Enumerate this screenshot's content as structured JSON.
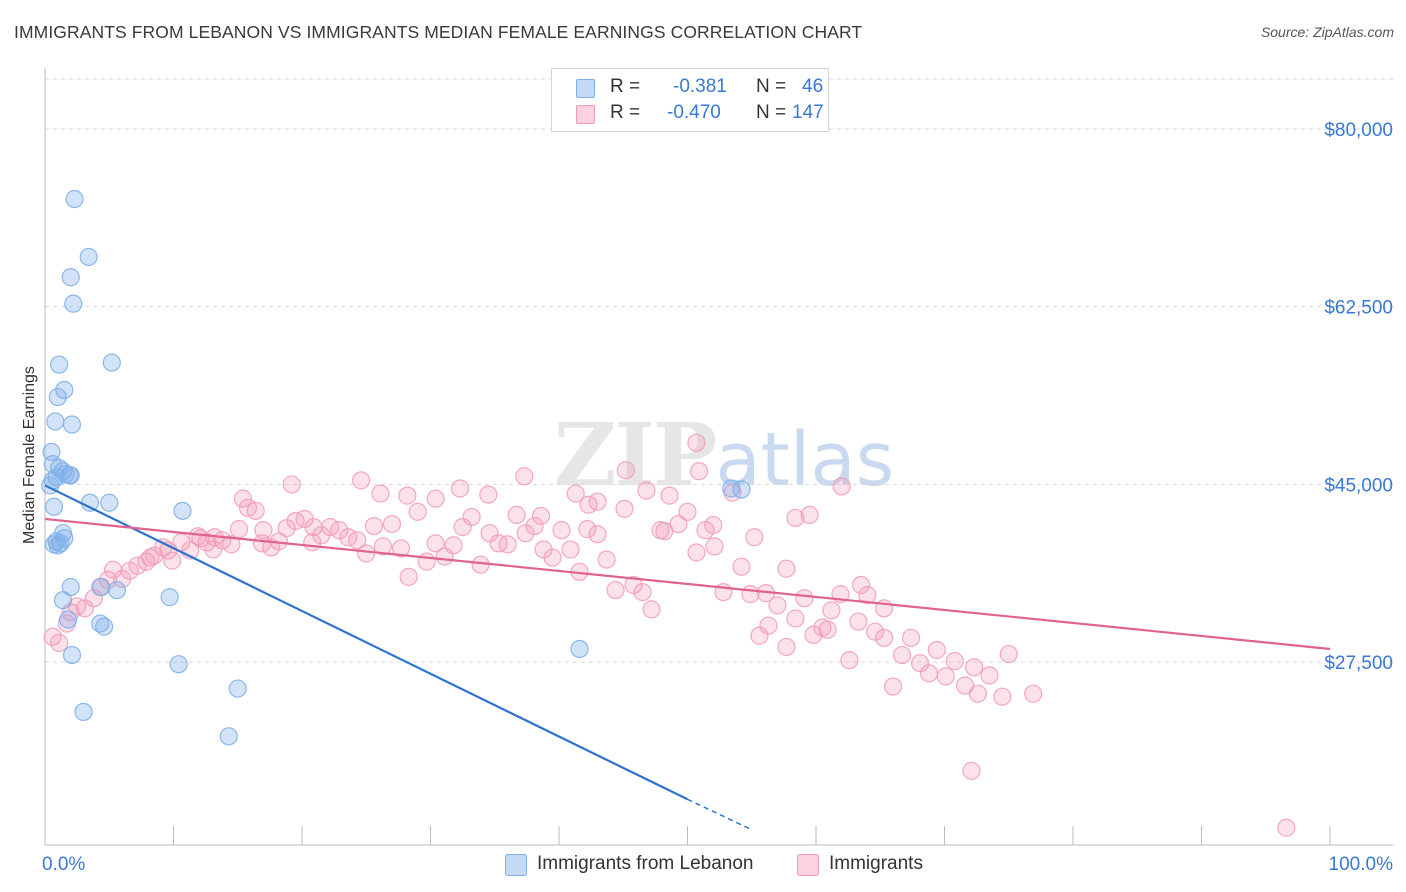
{
  "title": "IMMIGRANTS FROM LEBANON VS IMMIGRANTS MEDIAN FEMALE EARNINGS CORRELATION CHART",
  "source": "Source: ZipAtlas.com",
  "watermark": "ZIPatlas",
  "legend": {
    "rows": [
      {
        "r_label": "R =",
        "r_value": "-0.381",
        "n_label": "N =",
        "n_value": "46",
        "color": "#a9c8f2"
      },
      {
        "r_label": "R =",
        "r_value": "-0.470",
        "n_label": "N =",
        "n_value": "147",
        "color": "#f6b3c8"
      }
    ]
  },
  "bottom_legend": [
    {
      "label": "Immigrants from Lebanon",
      "color": "#a9c8f2"
    },
    {
      "label": "Immigrants",
      "color": "#f6b3c8"
    }
  ],
  "colors": {
    "blue_point": "#7fb0ea",
    "blue_line": "#2f73d0",
    "pink_point": "#f29ab5",
    "pink_line": "#e0628e",
    "tick_label": "#3a78d4",
    "grid": "#d8d8d8"
  },
  "chart_data": {
    "type": "scatter",
    "title": "IMMIGRANTS FROM LEBANON VS IMMIGRANTS MEDIAN FEMALE EARNINGS CORRELATION CHART",
    "xlabel": "",
    "ylabel": "Median Female Earnings",
    "xlim": [
      0,
      100
    ],
    "ylim": [
      9500,
      86000
    ],
    "x_tick_labels": [
      "0.0%",
      "100.0%"
    ],
    "y_ticks": [
      27500,
      45000,
      62500,
      80000
    ],
    "y_tick_labels": [
      "$27,500",
      "$45,000",
      "$62,500",
      "$80,000"
    ],
    "grid": true,
    "legend_position": "top-center",
    "series": [
      {
        "name": "Immigrants from Lebanon",
        "points": [
          [
            2.3,
            73100
          ],
          [
            3.4,
            67400
          ],
          [
            2.0,
            65400
          ],
          [
            2.2,
            62800
          ],
          [
            5.2,
            57000
          ],
          [
            1.1,
            56800
          ],
          [
            1.5,
            54300
          ],
          [
            1.0,
            53600
          ],
          [
            0.8,
            51200
          ],
          [
            2.1,
            50900
          ],
          [
            0.5,
            48200
          ],
          [
            0.6,
            47000
          ],
          [
            1.1,
            46600
          ],
          [
            1.4,
            46300
          ],
          [
            1.6,
            46000
          ],
          [
            1.9,
            45900
          ],
          [
            2.0,
            45900
          ],
          [
            0.9,
            45700
          ],
          [
            0.6,
            45400
          ],
          [
            0.4,
            44900
          ],
          [
            3.5,
            43200
          ],
          [
            0.7,
            42800
          ],
          [
            5.0,
            43200
          ],
          [
            10.7,
            42400
          ],
          [
            1.4,
            40200
          ],
          [
            1.5,
            39700
          ],
          [
            0.9,
            39400
          ],
          [
            1.2,
            39200
          ],
          [
            1.0,
            39000
          ],
          [
            0.7,
            39100
          ],
          [
            2.0,
            34900
          ],
          [
            4.3,
            34900
          ],
          [
            5.6,
            34600
          ],
          [
            1.4,
            33600
          ],
          [
            9.7,
            33900
          ],
          [
            1.8,
            31700
          ],
          [
            4.3,
            31300
          ],
          [
            4.6,
            31000
          ],
          [
            2.1,
            28200
          ],
          [
            41.6,
            28800
          ],
          [
            10.4,
            27300
          ],
          [
            15.0,
            24900
          ],
          [
            3.0,
            22600
          ],
          [
            14.3,
            20200
          ],
          [
            53.4,
            44600
          ],
          [
            54.2,
            44500
          ]
        ]
      },
      {
        "name": "Immigrants",
        "points": [
          [
            0.6,
            30000
          ],
          [
            1.1,
            29400
          ],
          [
            1.7,
            31300
          ],
          [
            2.0,
            32400
          ],
          [
            2.5,
            33000
          ],
          [
            3.1,
            32800
          ],
          [
            3.8,
            33800
          ],
          [
            4.4,
            34900
          ],
          [
            4.9,
            35600
          ],
          [
            5.3,
            36600
          ],
          [
            6.0,
            35700
          ],
          [
            6.6,
            36500
          ],
          [
            7.2,
            37000
          ],
          [
            7.9,
            37400
          ],
          [
            8.5,
            38000
          ],
          [
            9.2,
            38800
          ],
          [
            9.9,
            37500
          ],
          [
            10.6,
            39300
          ],
          [
            11.3,
            38500
          ],
          [
            11.9,
            39900
          ],
          [
            12.6,
            39300
          ],
          [
            13.2,
            39800
          ],
          [
            13.8,
            39500
          ],
          [
            14.5,
            39100
          ],
          [
            15.1,
            40600
          ],
          [
            15.8,
            42700
          ],
          [
            16.4,
            42400
          ],
          [
            17.0,
            40500
          ],
          [
            17.6,
            38800
          ],
          [
            18.2,
            39400
          ],
          [
            18.8,
            40700
          ],
          [
            19.5,
            41400
          ],
          [
            20.2,
            41600
          ],
          [
            20.8,
            39300
          ],
          [
            21.5,
            40000
          ],
          [
            22.2,
            40800
          ],
          [
            22.9,
            40500
          ],
          [
            23.6,
            39800
          ],
          [
            24.3,
            39500
          ],
          [
            25.0,
            38200
          ],
          [
            25.6,
            40900
          ],
          [
            26.3,
            38900
          ],
          [
            27.0,
            41100
          ],
          [
            27.7,
            38700
          ],
          [
            28.3,
            35900
          ],
          [
            29.0,
            42300
          ],
          [
            29.7,
            37400
          ],
          [
            30.4,
            39200
          ],
          [
            31.1,
            37900
          ],
          [
            31.8,
            39000
          ],
          [
            32.5,
            40800
          ],
          [
            33.2,
            41800
          ],
          [
            33.9,
            37100
          ],
          [
            34.6,
            40200
          ],
          [
            35.3,
            39200
          ],
          [
            36.0,
            39100
          ],
          [
            36.7,
            42000
          ],
          [
            37.4,
            40200
          ],
          [
            38.1,
            40900
          ],
          [
            38.8,
            38600
          ],
          [
            39.5,
            37800
          ],
          [
            40.2,
            40500
          ],
          [
            40.9,
            38600
          ],
          [
            41.6,
            36400
          ],
          [
            42.3,
            43000
          ],
          [
            43.0,
            40100
          ],
          [
            43.7,
            37600
          ],
          [
            44.4,
            34600
          ],
          [
            45.1,
            42600
          ],
          [
            45.8,
            35100
          ],
          [
            46.5,
            34400
          ],
          [
            47.2,
            32700
          ],
          [
            47.9,
            40500
          ],
          [
            48.6,
            43900
          ],
          [
            49.3,
            41100
          ],
          [
            50.0,
            42300
          ],
          [
            50.7,
            38300
          ],
          [
            51.4,
            40500
          ],
          [
            52.1,
            38900
          ],
          [
            52.8,
            34400
          ],
          [
            53.5,
            44200
          ],
          [
            54.2,
            36900
          ],
          [
            54.9,
            34200
          ],
          [
            55.6,
            30100
          ],
          [
            56.3,
            31100
          ],
          [
            57.0,
            33100
          ],
          [
            57.7,
            29000
          ],
          [
            58.4,
            31800
          ],
          [
            59.1,
            33800
          ],
          [
            59.8,
            30200
          ],
          [
            60.5,
            30900
          ],
          [
            61.2,
            32600
          ],
          [
            61.9,
            34200
          ],
          [
            62.6,
            27700
          ],
          [
            63.3,
            31500
          ],
          [
            64.0,
            34100
          ],
          [
            64.6,
            30500
          ],
          [
            65.3,
            32800
          ],
          [
            66.0,
            25100
          ],
          [
            66.7,
            28200
          ],
          [
            67.4,
            29900
          ],
          [
            68.1,
            27400
          ],
          [
            68.8,
            26400
          ],
          [
            69.4,
            28700
          ],
          [
            70.1,
            26100
          ],
          [
            70.8,
            27600
          ],
          [
            71.6,
            25200
          ],
          [
            72.6,
            24400
          ],
          [
            73.5,
            26200
          ],
          [
            74.5,
            24100
          ],
          [
            76.9,
            24400
          ],
          [
            62.0,
            44800
          ],
          [
            59.5,
            42000
          ],
          [
            50.7,
            49100
          ],
          [
            45.2,
            46400
          ],
          [
            42.2,
            40600
          ],
          [
            37.3,
            45800
          ],
          [
            32.3,
            44600
          ],
          [
            28.2,
            43900
          ],
          [
            24.6,
            45400
          ],
          [
            19.2,
            45000
          ],
          [
            15.4,
            43600
          ],
          [
            8.2,
            37800
          ],
          [
            9.6,
            38500
          ],
          [
            12.1,
            39700
          ],
          [
            13.1,
            38600
          ],
          [
            16.9,
            39200
          ],
          [
            20.9,
            40800
          ],
          [
            26.1,
            44100
          ],
          [
            30.4,
            43600
          ],
          [
            34.5,
            44000
          ],
          [
            38.6,
            41900
          ],
          [
            41.3,
            44100
          ],
          [
            43.0,
            43300
          ],
          [
            46.8,
            44400
          ],
          [
            48.2,
            40400
          ],
          [
            50.9,
            46300
          ],
          [
            52.0,
            41000
          ],
          [
            56.1,
            34300
          ],
          [
            57.7,
            36700
          ],
          [
            55.2,
            39800
          ],
          [
            58.4,
            41700
          ],
          [
            60.9,
            30700
          ],
          [
            63.5,
            35100
          ],
          [
            65.3,
            29900
          ],
          [
            72.3,
            27000
          ],
          [
            75.0,
            28300
          ],
          [
            72.1,
            16800
          ],
          [
            96.6,
            11200
          ]
        ]
      }
    ],
    "trend_lines": [
      {
        "name": "Immigrants from Lebanon",
        "x": [
          0,
          50
        ],
        "y": [
          44900,
          14000
        ],
        "dashed_extension_to": [
          55,
          11000
        ]
      },
      {
        "name": "Immigrants",
        "x": [
          0,
          100
        ],
        "y": [
          41600,
          28800
        ]
      }
    ]
  }
}
